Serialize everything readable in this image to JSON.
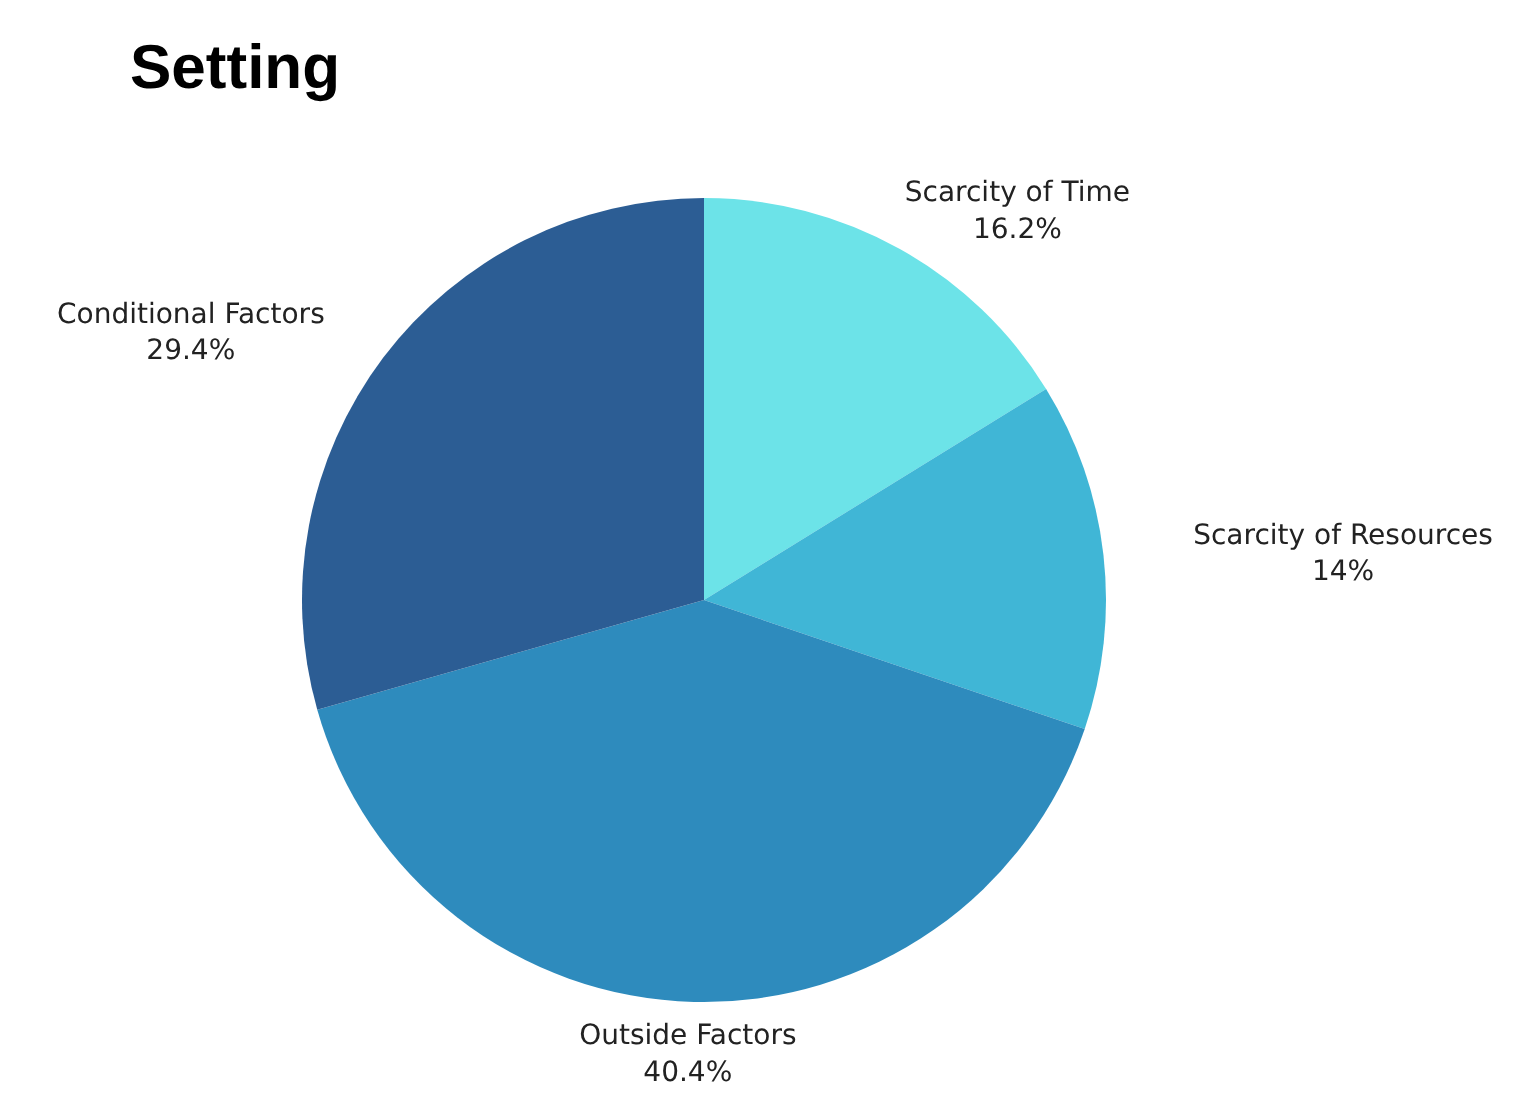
{
  "chart_data": {
    "type": "pie",
    "title": "Setting",
    "categories": [
      "Scarcity of Time",
      "Scarcity of Resources",
      "Outside Factors",
      "Conditional Factors"
    ],
    "values": [
      16.2,
      14,
      40.4,
      29.4
    ],
    "value_labels": [
      "16.2%",
      "14%",
      "40.4%",
      "29.4%"
    ],
    "colors": [
      "#6ce3e8",
      "#40b6d6",
      "#2e8bbd",
      "#2c5d94"
    ]
  }
}
